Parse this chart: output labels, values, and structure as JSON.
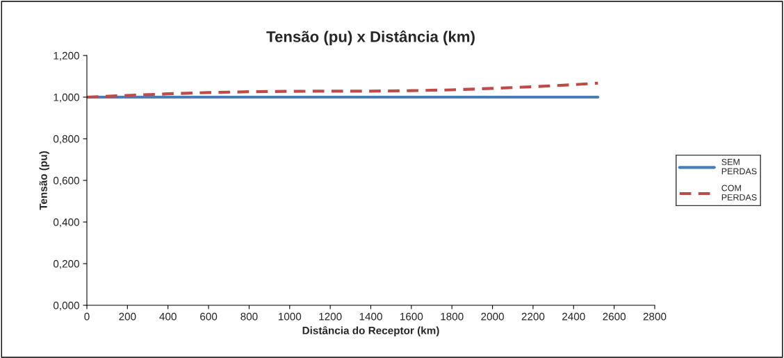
{
  "chart_data": {
    "type": "line",
    "title": "Tensão (pu) x Distância (km)",
    "xlabel": "Distância do Receptor (km)",
    "ylabel": "Tensão (pu)",
    "x": [
      0,
      200,
      400,
      600,
      800,
      1000,
      1200,
      1400,
      1600,
      1800,
      2000,
      2200,
      2400,
      2520
    ],
    "series": [
      {
        "name": "SEM PERDAS",
        "color": "#4a7ebb",
        "line_style": "solid",
        "values": [
          1.0,
          1.0,
          1.0,
          1.0,
          1.0,
          1.0,
          1.0,
          1.0,
          1.0,
          1.0,
          1.0,
          1.0,
          1.0,
          1.0
        ]
      },
      {
        "name": "COM PERDAS",
        "color": "#be4b48",
        "line_style": "dashed",
        "values": [
          1.0,
          1.008,
          1.016,
          1.022,
          1.026,
          1.028,
          1.029,
          1.029,
          1.031,
          1.035,
          1.042,
          1.05,
          1.06,
          1.067
        ]
      }
    ],
    "xlim": [
      0,
      2800
    ],
    "xticks": [
      0,
      200,
      400,
      600,
      800,
      1000,
      1200,
      1400,
      1600,
      1800,
      2000,
      2200,
      2400,
      2600,
      2800
    ],
    "ylim": [
      0,
      1.2
    ],
    "yticks": [
      {
        "value": 0,
        "label": "0,000"
      },
      {
        "value": 0.2,
        "label": "0,200"
      },
      {
        "value": 0.4,
        "label": "0,400"
      },
      {
        "value": 0.6,
        "label": "0,600"
      },
      {
        "value": 0.8,
        "label": "0,800"
      },
      {
        "value": 1.0,
        "label": "1,000"
      },
      {
        "value": 1.2,
        "label": "1,200"
      }
    ],
    "grid": false,
    "legend": "right",
    "marker": "none"
  }
}
